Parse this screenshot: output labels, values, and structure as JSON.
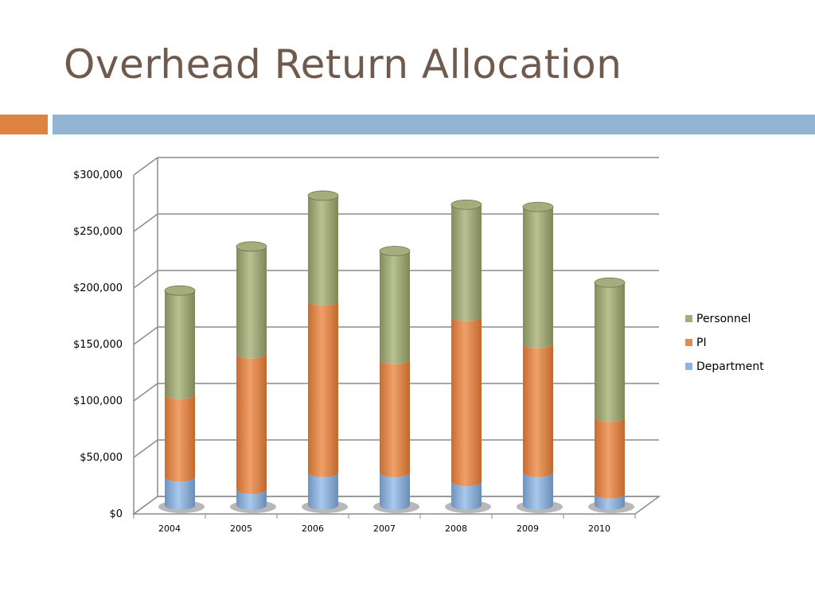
{
  "slide": {
    "title": "Overhead Return Allocation"
  },
  "colors": {
    "title": "#705a4d",
    "accent_orange": "#df8343",
    "accent_blue": "#92b4d3"
  },
  "chart_data": {
    "type": "bar",
    "stacked": true,
    "style": "3d-cylinder",
    "categories": [
      "2004",
      "2005",
      "2006",
      "2007",
      "2008",
      "2009",
      "2010"
    ],
    "series": [
      {
        "name": "Department",
        "color": "#8db3e2",
        "values": [
          25000,
          14000,
          29000,
          29000,
          21000,
          29000,
          10000
        ]
      },
      {
        "name": "PI",
        "color": "#e68a4a",
        "values": [
          73000,
          120000,
          152000,
          100000,
          146000,
          114000,
          68000
        ]
      },
      {
        "name": "Personnel",
        "color": "#a4ad7c",
        "values": [
          92000,
          95000,
          93000,
          96000,
          99000,
          121000,
          119000
        ]
      }
    ],
    "ylim": [
      0,
      300000
    ],
    "yticks": [
      0,
      50000,
      100000,
      150000,
      200000,
      250000,
      300000
    ],
    "ytick_labels": [
      "$0",
      "$50,000",
      "$100,000",
      "$150,000",
      "$200,000",
      "$250,000",
      "$300,000"
    ],
    "grid": true,
    "legend_position": "right",
    "legend_order": [
      "Personnel",
      "PI",
      "Department"
    ],
    "title": "",
    "xlabel": "",
    "ylabel": ""
  }
}
